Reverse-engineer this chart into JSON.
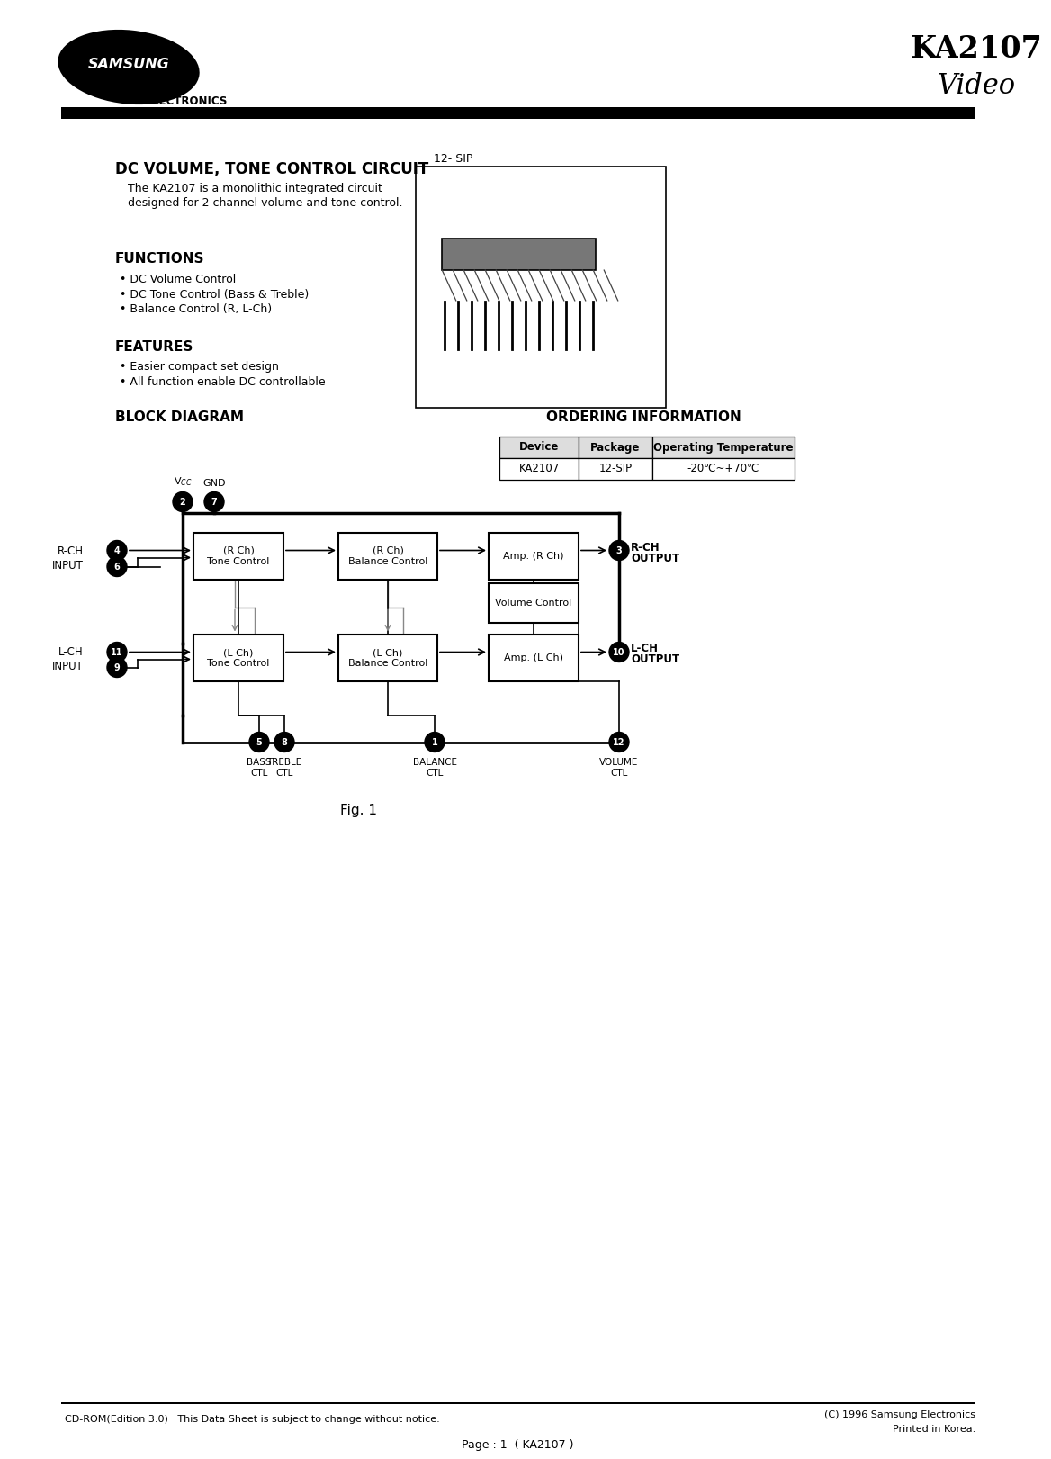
{
  "title": "KA2107",
  "subtitle": "Video",
  "company": "SAMSUNG",
  "company_sub": "ELECTRONICS",
  "part_title": "DC VOLUME, TONE CONTROL CIRCUIT",
  "part_desc1": "The KA2107 is a monolithic integrated circuit",
  "part_desc2": "designed for 2 channel volume and tone control.",
  "functions_title": "FUNCTIONS",
  "functions": [
    "DC Volume Control",
    "DC Tone Control (Bass & Treble)",
    "Balance Control (R, L-Ch)"
  ],
  "features_title": "FEATURES",
  "features": [
    "Easier compact set design",
    "All function enable DC controllable"
  ],
  "block_diagram_title": "BLOCK DIAGRAM",
  "ordering_title": "ORDERING INFORMATION",
  "ordering_headers": [
    "Device",
    "Package",
    "Operating Temperature"
  ],
  "ordering_row": [
    "KA2107",
    "12-SIP",
    "-20℃~+70℃"
  ],
  "package_label": "12- SIP",
  "fig_label": "Fig. 1",
  "footer_left": "CD-ROM(Edition 3.0)   This Data Sheet is subject to change without notice.",
  "footer_right1": "(C) 1996 Samsung Electronics",
  "footer_right2": "Printed in Korea.",
  "footer_center": "Page : 1  ( KA2107 )",
  "background": "#ffffff"
}
